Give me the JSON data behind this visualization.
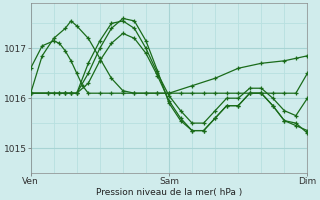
{
  "xlabel": "Pression niveau de la mer( hPa )",
  "bg_color": "#d0ecec",
  "grid_major_color": "#a8d4d4",
  "grid_minor_color": "#b8e0e0",
  "line_color": "#1a6b1a",
  "ylim": [
    1014.6,
    1017.9
  ],
  "yticks": [
    1015,
    1016,
    1017
  ],
  "xlim": [
    0,
    48
  ],
  "xtick_positions": [
    0,
    24,
    48
  ],
  "xtick_labels": [
    "Ven",
    "Sam",
    "Dim"
  ],
  "series": [
    {
      "x": [
        0,
        2,
        4,
        5,
        6,
        7,
        8,
        9,
        10,
        12,
        14,
        16,
        18,
        20,
        22,
        24,
        28,
        32,
        36,
        40,
        44,
        46,
        48
      ],
      "y": [
        1016.6,
        1017.05,
        1017.15,
        1017.1,
        1016.95,
        1016.75,
        1016.5,
        1016.25,
        1016.1,
        1016.1,
        1016.1,
        1016.1,
        1016.1,
        1016.1,
        1016.1,
        1016.1,
        1016.25,
        1016.4,
        1016.6,
        1016.7,
        1016.75,
        1016.8,
        1016.85
      ]
    },
    {
      "x": [
        0,
        2,
        4,
        6,
        7,
        8,
        10,
        12,
        14,
        16,
        18,
        20,
        22,
        24,
        26,
        28,
        30,
        32,
        34,
        36,
        38,
        40,
        42,
        44,
        46,
        48
      ],
      "y": [
        1016.1,
        1016.85,
        1017.2,
        1017.4,
        1017.55,
        1017.45,
        1017.2,
        1016.8,
        1016.4,
        1016.15,
        1016.1,
        1016.1,
        1016.1,
        1016.1,
        1016.1,
        1016.1,
        1016.1,
        1016.1,
        1016.1,
        1016.1,
        1016.1,
        1016.1,
        1016.1,
        1016.1,
        1016.1,
        1016.5
      ]
    },
    {
      "x": [
        0,
        3,
        5,
        6,
        7,
        8,
        10,
        12,
        14,
        16,
        18,
        20,
        22,
        24,
        26,
        28,
        30,
        32,
        34,
        36,
        38,
        40,
        42,
        44,
        46,
        48
      ],
      "y": [
        1016.1,
        1016.1,
        1016.1,
        1016.1,
        1016.1,
        1016.1,
        1016.7,
        1017.15,
        1017.5,
        1017.55,
        1017.4,
        1017.0,
        1016.5,
        1016.05,
        1015.75,
        1015.5,
        1015.5,
        1015.75,
        1016.0,
        1016.0,
        1016.2,
        1016.2,
        1016.0,
        1015.75,
        1015.65,
        1016.0
      ]
    },
    {
      "x": [
        0,
        3,
        5,
        6,
        7,
        8,
        10,
        12,
        14,
        16,
        18,
        20,
        22,
        24,
        26,
        28,
        30,
        32,
        34,
        36,
        38,
        40,
        42,
        44,
        46,
        48
      ],
      "y": [
        1016.1,
        1016.1,
        1016.1,
        1016.1,
        1016.1,
        1016.1,
        1016.5,
        1017.0,
        1017.4,
        1017.6,
        1017.55,
        1017.15,
        1016.55,
        1015.9,
        1015.55,
        1015.35,
        1015.35,
        1015.6,
        1015.85,
        1015.85,
        1016.1,
        1016.1,
        1015.85,
        1015.55,
        1015.45,
        1015.35
      ]
    },
    {
      "x": [
        0,
        4,
        6,
        7,
        8,
        10,
        12,
        14,
        16,
        18,
        20,
        22,
        24,
        26,
        28,
        30,
        32,
        34,
        36,
        38,
        40,
        42,
        44,
        46,
        48
      ],
      "y": [
        1016.1,
        1016.1,
        1016.1,
        1016.1,
        1016.1,
        1016.3,
        1016.75,
        1017.1,
        1017.3,
        1017.2,
        1016.9,
        1016.45,
        1015.95,
        1015.6,
        1015.35,
        1015.35,
        1015.6,
        1015.85,
        1015.85,
        1016.1,
        1016.1,
        1015.85,
        1015.55,
        1015.5,
        1015.3
      ]
    }
  ]
}
